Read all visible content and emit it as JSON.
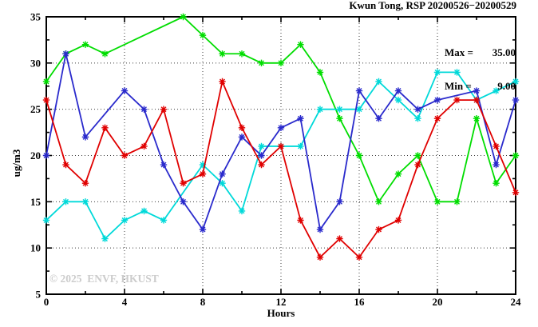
{
  "title": "Kwun Tong, RSP 20200526−20200529",
  "legend": {
    "max_label": "Max =",
    "max_value": "35.00",
    "min_label": "Min =",
    "min_value": "9.00"
  },
  "watermark": "© 2025  ENVF, HKUST",
  "chart_data": {
    "type": "line",
    "title": "Kwun Tong, RSP 20200526−20200529",
    "xlabel": "Hours",
    "ylabel": "ug/m3",
    "xlim": [
      0,
      24
    ],
    "ylim": [
      5,
      35
    ],
    "xticks": [
      0,
      4,
      8,
      12,
      16,
      20,
      24
    ],
    "xminorticks": [
      2,
      6,
      10,
      14,
      18,
      22
    ],
    "yticks": [
      5,
      10,
      15,
      20,
      25,
      30,
      35
    ],
    "yminorticks": [
      7.5,
      12.5,
      17.5,
      22.5,
      27.5,
      32.5
    ],
    "grid_x": [
      4,
      8,
      12,
      16,
      20
    ],
    "grid_y": [
      10,
      15,
      20,
      25,
      30
    ],
    "grid_style": "dotted",
    "legend_position": "top-right-inside",
    "stats": {
      "max": 35.0,
      "min": 9.0
    },
    "marker": "asterisk",
    "series": [
      {
        "name": "green",
        "color": "#00dd00",
        "points": [
          [
            0,
            28
          ],
          [
            1,
            31
          ],
          [
            2,
            32
          ],
          [
            3,
            31
          ],
          [
            7,
            35
          ],
          [
            8,
            33
          ],
          [
            9,
            31
          ],
          [
            10,
            31
          ],
          [
            11,
            30
          ],
          [
            12,
            30
          ],
          [
            13,
            32
          ],
          [
            14,
            29
          ],
          [
            15,
            24
          ],
          [
            16,
            20
          ],
          [
            17,
            15
          ],
          [
            18,
            18
          ],
          [
            19,
            20
          ],
          [
            20,
            15
          ],
          [
            21,
            15
          ],
          [
            22,
            24
          ],
          [
            23,
            17
          ],
          [
            24,
            20
          ]
        ]
      },
      {
        "name": "cyan",
        "color": "#00d9d9",
        "points": [
          [
            0,
            13
          ],
          [
            1,
            15
          ],
          [
            2,
            15
          ],
          [
            3,
            11
          ],
          [
            4,
            13
          ],
          [
            5,
            14
          ],
          [
            6,
            13
          ],
          [
            8,
            19
          ],
          [
            9,
            17
          ],
          [
            10,
            14
          ],
          [
            11,
            21
          ],
          [
            12,
            21
          ],
          [
            13,
            21
          ],
          [
            14,
            25
          ],
          [
            15,
            25
          ],
          [
            16,
            25
          ],
          [
            17,
            28
          ],
          [
            18,
            26
          ],
          [
            19,
            24
          ],
          [
            20,
            29
          ],
          [
            21,
            29
          ],
          [
            22,
            26
          ],
          [
            23,
            27
          ],
          [
            24,
            28
          ]
        ]
      },
      {
        "name": "blue",
        "color": "#2a2acc",
        "points": [
          [
            0,
            20
          ],
          [
            1,
            31
          ],
          [
            2,
            22
          ],
          [
            4,
            27
          ],
          [
            5,
            25
          ],
          [
            6,
            19
          ],
          [
            7,
            15
          ],
          [
            8,
            12
          ],
          [
            9,
            18
          ],
          [
            10,
            22
          ],
          [
            11,
            20
          ],
          [
            12,
            23
          ],
          [
            13,
            24
          ],
          [
            14,
            12
          ],
          [
            15,
            15
          ],
          [
            16,
            27
          ],
          [
            17,
            24
          ],
          [
            18,
            27
          ],
          [
            19,
            25
          ],
          [
            20,
            26
          ],
          [
            22,
            27
          ],
          [
            23,
            19
          ],
          [
            24,
            26
          ]
        ]
      },
      {
        "name": "red",
        "color": "#e00000",
        "points": [
          [
            0,
            26
          ],
          [
            1,
            19
          ],
          [
            2,
            17
          ],
          [
            3,
            23
          ],
          [
            4,
            20
          ],
          [
            5,
            21
          ],
          [
            6,
            25
          ],
          [
            7,
            17
          ],
          [
            8,
            18
          ],
          [
            9,
            28
          ],
          [
            10,
            23
          ],
          [
            11,
            19
          ],
          [
            12,
            21
          ],
          [
            13,
            13
          ],
          [
            14,
            9
          ],
          [
            15,
            11
          ],
          [
            16,
            9
          ],
          [
            17,
            12
          ],
          [
            18,
            13
          ],
          [
            19,
            19
          ],
          [
            20,
            24
          ],
          [
            21,
            26
          ],
          [
            22,
            26
          ],
          [
            23,
            21
          ],
          [
            24,
            16
          ]
        ]
      }
    ]
  }
}
